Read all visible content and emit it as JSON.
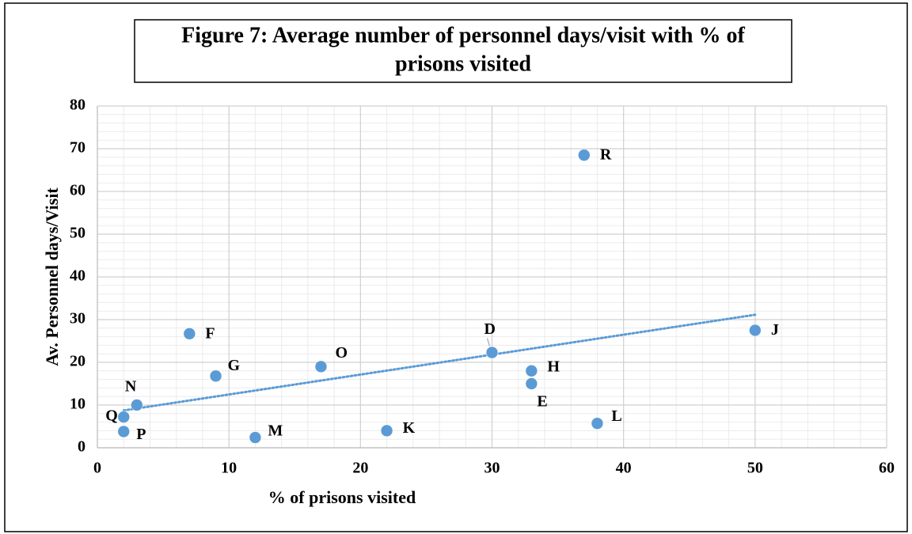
{
  "chart_data": {
    "type": "scatter",
    "title": [
      "Figure 7: Average number of personnel days/visit with % of",
      "prisons visited"
    ],
    "xlabel": "% of prisons visited",
    "ylabel": "Av. Personnel days/Visit",
    "x": [
      37,
      50,
      30,
      33,
      33,
      38,
      22,
      17,
      9,
      7,
      12,
      3,
      2,
      2
    ],
    "values": [
      68.5,
      27.5,
      22.3,
      18,
      15,
      5.7,
      4,
      19,
      16.8,
      26.7,
      2.4,
      10,
      7.2,
      3.8
    ],
    "point_labels": [
      "R",
      "J",
      "D",
      "H",
      "E",
      "L",
      "K",
      "O",
      "G",
      "F",
      "M",
      "N",
      "Q",
      "P"
    ],
    "color": "#5b9bd5",
    "trendline": "linear",
    "xlim": [
      0,
      60
    ],
    "ylim": [
      0,
      80
    ],
    "xticks": [
      0,
      10,
      20,
      30,
      40,
      50,
      60
    ],
    "yticks": [
      0,
      10,
      20,
      30,
      40,
      50,
      60,
      70,
      80
    ],
    "xminorticks": [
      2,
      4,
      6,
      8,
      12,
      14,
      16,
      18,
      22,
      24,
      26,
      28,
      32,
      34,
      36,
      38,
      42,
      44,
      46,
      48,
      52,
      54,
      56,
      58
    ],
    "yminorticks": [
      2,
      4,
      6,
      8,
      12,
      14,
      16,
      18,
      22,
      24,
      26,
      28,
      32,
      34,
      36,
      38,
      42,
      44,
      46,
      48,
      52,
      54,
      56,
      58,
      62,
      64,
      66,
      68,
      72,
      74,
      76,
      78
    ],
    "grid": true,
    "minor_grid": true
  }
}
